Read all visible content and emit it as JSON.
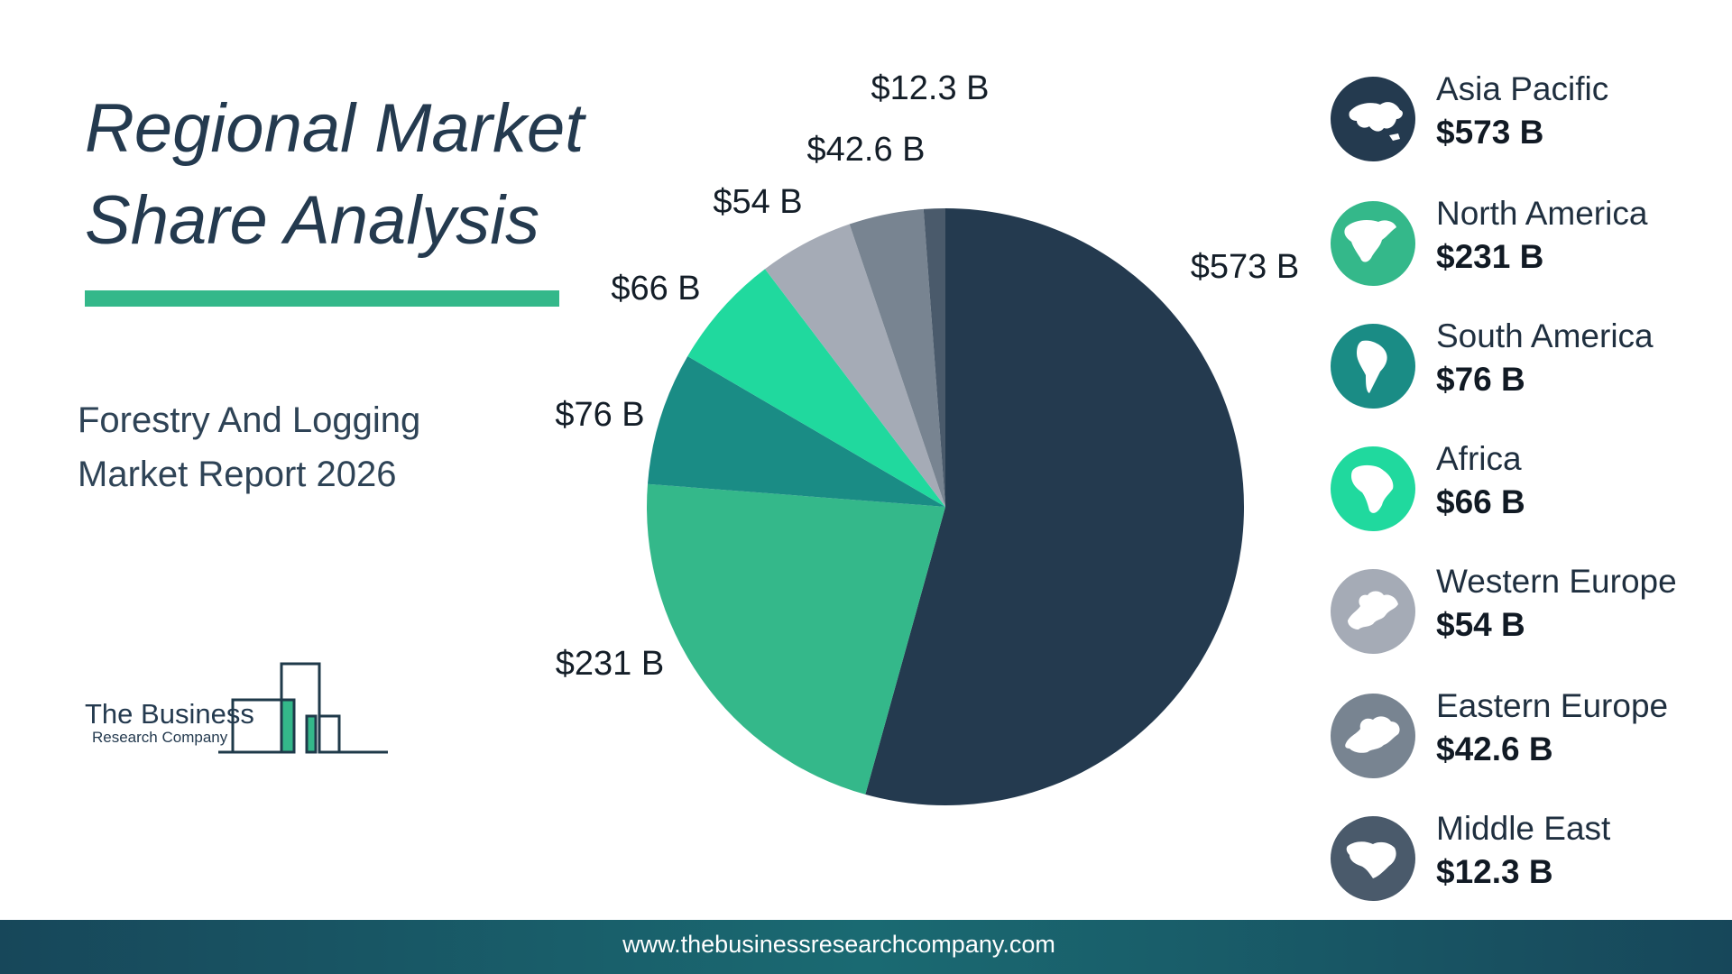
{
  "header": {
    "title_line1": "Regional Market",
    "title_line2": "Share Analysis",
    "subtitle_line1": "Forestry And Logging",
    "subtitle_line2": "Market Report 2026"
  },
  "logo": {
    "line1": "The Business",
    "line2": "Research Company",
    "accent_color": "#34b88a",
    "dark_color": "#1f3a4a"
  },
  "footer": {
    "url": "www.thebusinessresearchcompany.com"
  },
  "chart_data": {
    "type": "pie",
    "title": "",
    "unit": "$ B",
    "start_angle_deg": 0,
    "direction": "clockwise",
    "slices": [
      {
        "label": "Asia Pacific",
        "value": 573,
        "display": "$573 B",
        "legend_value": "$573 B",
        "color": "#243a4f",
        "icon": "asia-map-icon"
      },
      {
        "label": "North America",
        "value": 231,
        "display": "$231 B",
        "legend_value": "$231 B",
        "color": "#34b88a",
        "icon": "north-america-map-icon"
      },
      {
        "label": "South America",
        "value": 76,
        "display": "$76 B",
        "legend_value": "$76 B",
        "color": "#1a8c85",
        "icon": "south-america-map-icon"
      },
      {
        "label": "Africa",
        "value": 66,
        "display": "$66 B",
        "legend_value": "$66 B",
        "color": "#20d99e",
        "icon": "africa-map-icon"
      },
      {
        "label": "Western Europe",
        "value": 54,
        "display": "$54 B",
        "legend_value": "$54 B",
        "color": "#a5abb6",
        "icon": "western-europe-map-icon"
      },
      {
        "label": "Eastern Europe",
        "value": 42.6,
        "display": "$42.6 B",
        "legend_value": "$42.6 B",
        "color": "#788491",
        "icon": "eastern-europe-map-icon"
      },
      {
        "label": "Middle East",
        "value": 12.3,
        "display": "$12.3 B",
        "legend_value": "$12.3 B",
        "color": "#4a5a6b",
        "icon": "middle-east-map-icon"
      }
    ],
    "legend_placement": "right"
  }
}
